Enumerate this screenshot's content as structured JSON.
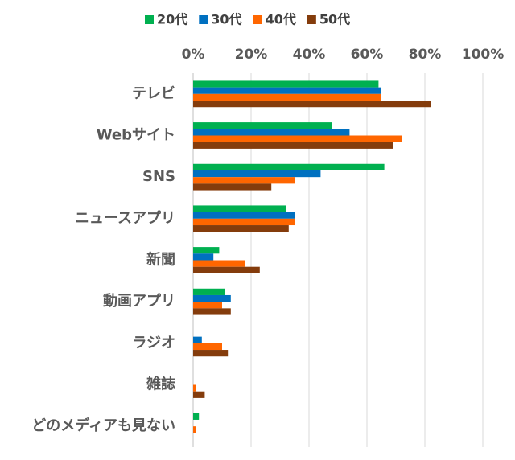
{
  "chart_data": {
    "type": "hbar",
    "categories": [
      "テレビ",
      "Webサイト",
      "SNS",
      "ニュースアプリ",
      "新聞",
      "動画アプリ",
      "ラジオ",
      "雑誌",
      "どのメディアも見ない"
    ],
    "series": [
      {
        "name": "20代",
        "color": "#00b050",
        "values": [
          64,
          48,
          66,
          32,
          9,
          11,
          0,
          0,
          2
        ]
      },
      {
        "name": "30代",
        "color": "#0070c0",
        "values": [
          65,
          54,
          44,
          35,
          7,
          13,
          3,
          0,
          0
        ]
      },
      {
        "name": "40代",
        "color": "#ff6600",
        "values": [
          65,
          72,
          35,
          35,
          18,
          10,
          10,
          1,
          1
        ]
      },
      {
        "name": "50代",
        "color": "#843c0c",
        "values": [
          82,
          69,
          27,
          33,
          23,
          13,
          12,
          4,
          0
        ]
      }
    ],
    "xlim": [
      0,
      100
    ],
    "xticks": [
      {
        "value": 0,
        "label": "0%"
      },
      {
        "value": 20,
        "label": "20%"
      },
      {
        "value": 40,
        "label": "40%"
      },
      {
        "value": 60,
        "label": "60%"
      },
      {
        "value": 80,
        "label": "80%"
      },
      {
        "value": 100,
        "label": "100%"
      }
    ],
    "grid": true,
    "legend": "top"
  }
}
